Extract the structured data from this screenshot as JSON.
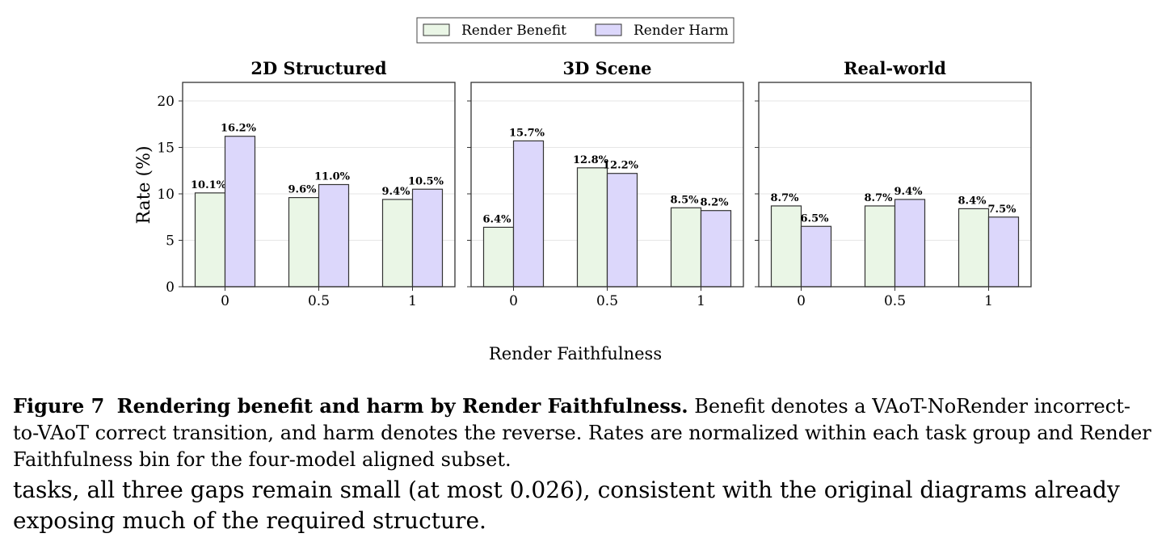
{
  "chart_data": {
    "type": "bar",
    "legend": {
      "placement": "top-center",
      "entries": [
        {
          "name": "Render Benefit",
          "color": "#eaf6e6"
        },
        {
          "name": "Render Harm",
          "color": "#dcd7fb"
        }
      ]
    },
    "xlabel": "Render Faithfulness",
    "ylabel": "Rate (%)",
    "ylim": [
      0,
      22
    ],
    "yticks": [
      0,
      5,
      10,
      15,
      20
    ],
    "categories": [
      "0",
      "0.5",
      "1"
    ],
    "grid": "horizontal",
    "panels": [
      {
        "title": "2D Structured",
        "series": [
          {
            "name": "Render Benefit",
            "values": [
              10.1,
              9.6,
              9.4
            ],
            "labels": [
              "10.1%",
              "9.6%",
              "9.4%"
            ]
          },
          {
            "name": "Render Harm",
            "values": [
              16.2,
              11.0,
              10.5
            ],
            "labels": [
              "16.2%",
              "11.0%",
              "10.5%"
            ]
          }
        ]
      },
      {
        "title": "3D Scene",
        "series": [
          {
            "name": "Render Benefit",
            "values": [
              6.4,
              12.8,
              8.5
            ],
            "labels": [
              "6.4%",
              "12.8%",
              "8.5%"
            ]
          },
          {
            "name": "Render Harm",
            "values": [
              15.7,
              12.2,
              8.2
            ],
            "labels": [
              "15.7%",
              "12.2%",
              "8.2%"
            ]
          }
        ]
      },
      {
        "title": "Real-world",
        "series": [
          {
            "name": "Render Benefit",
            "values": [
              8.7,
              8.7,
              8.4
            ],
            "labels": [
              "8.7%",
              "8.7%",
              "8.4%"
            ]
          },
          {
            "name": "Render Harm",
            "values": [
              6.5,
              9.4,
              7.5
            ],
            "labels": [
              "6.5%",
              "9.4%",
              "7.5%"
            ]
          }
        ]
      }
    ]
  },
  "caption": {
    "figure_number": "Figure 7",
    "title": "Rendering benefit and harm by Render Faithfulness.",
    "text": "Benefit denotes a VAoT-NoRender incorrect-to-VAoT correct transition, and harm denotes the reverse. Rates are normalized within each task group and Render Faithfulness bin for the four-model aligned subset."
  },
  "body_text": "tasks, all three gaps remain small (at most 0.026), consistent with the original diagrams already exposing much of the required structure."
}
